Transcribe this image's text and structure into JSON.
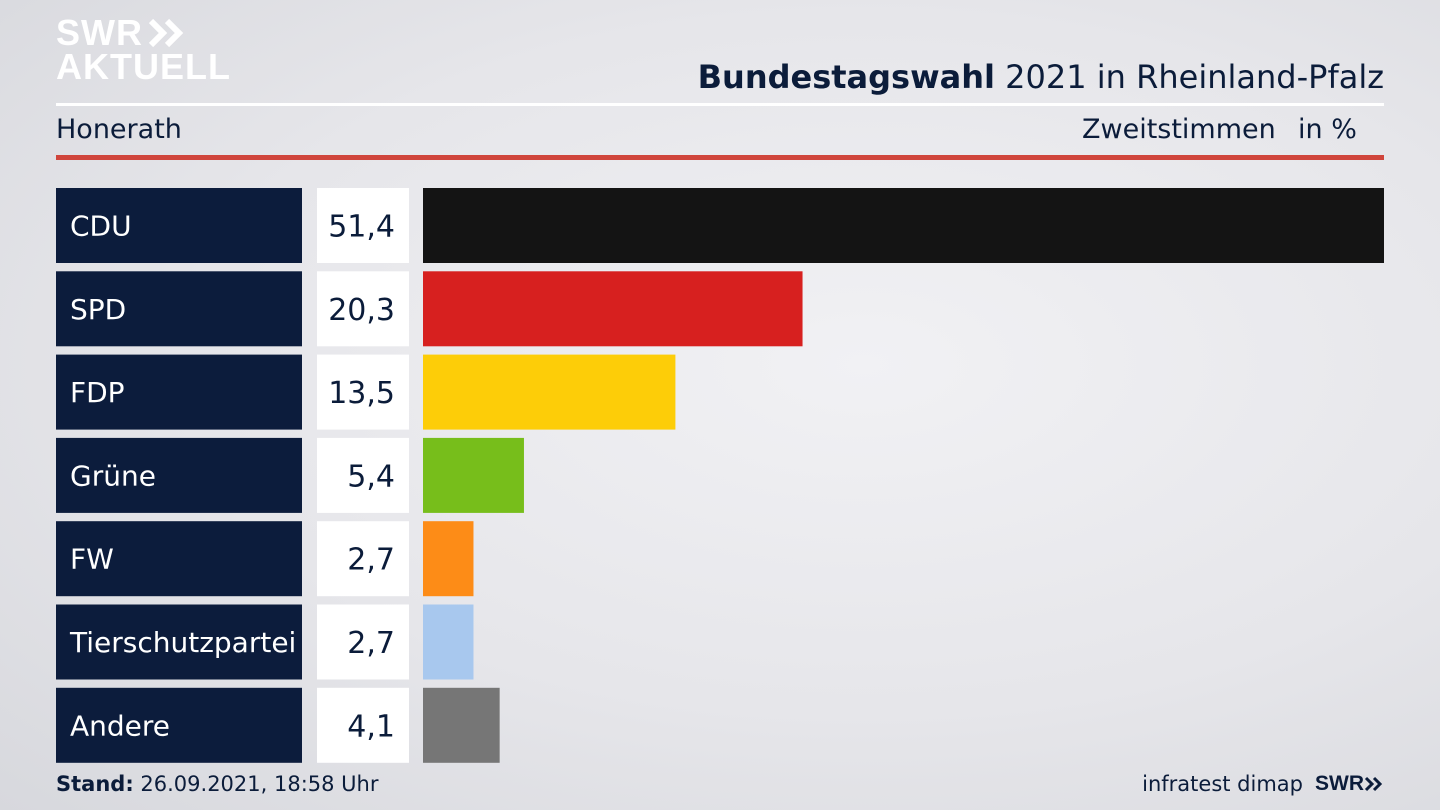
{
  "logo": {
    "line1": "SWR",
    "line2": "AKTUELL"
  },
  "header": {
    "title_bold": "Bundestagswahl",
    "title_rest": " 2021 in Rheinland-Pfalz",
    "region": "Honerath",
    "vote_type": "Zweitstimmen",
    "unit": "in %"
  },
  "footer": {
    "stand_label": "Stand:",
    "stand_value": " 26.09.2021, 18:58 Uhr",
    "source": "infratest dimap",
    "brand": "SWR"
  },
  "chart_data": {
    "type": "bar",
    "orientation": "horizontal",
    "categories": [
      "CDU",
      "SPD",
      "FDP",
      "Grüne",
      "FW",
      "Tierschutzpartei",
      "Andere"
    ],
    "values": [
      51.4,
      20.3,
      13.5,
      5.4,
      2.7,
      2.7,
      4.1
    ],
    "value_labels": [
      "51,4",
      "20,3",
      "13,5",
      "5,4",
      "2,7",
      "2,7",
      "4,1"
    ],
    "colors": [
      "#141414",
      "#d7201f",
      "#fdcd08",
      "#77be1b",
      "#fd8c17",
      "#a8c8ee",
      "#767676"
    ],
    "label_bg_color": "#0c1c3c",
    "value_bg_color": "#ffffff",
    "xlim": [
      0,
      51.4
    ],
    "grid": false,
    "legend": "none"
  }
}
